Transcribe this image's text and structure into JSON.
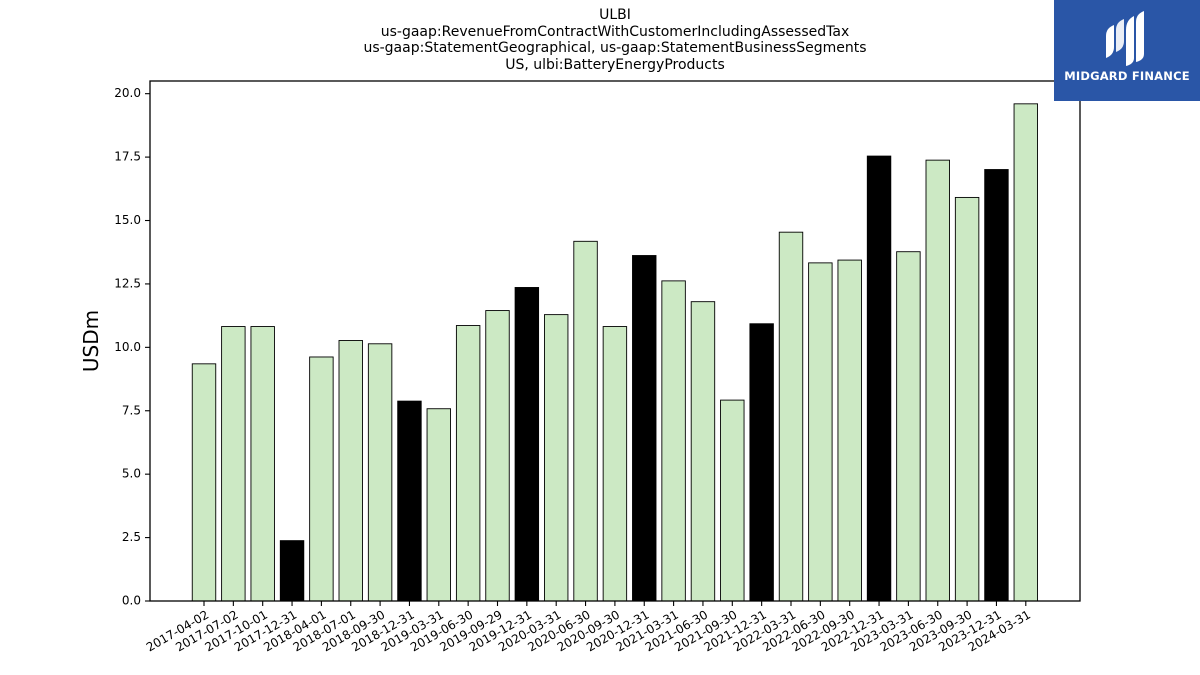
{
  "chart_data": {
    "type": "bar",
    "title_lines": [
      "ULBI",
      "us-gaap:RevenueFromContractWithCustomerIncludingAssessedTax",
      "us-gaap:StatementGeographical, us-gaap:StatementBusinessSegments",
      "US, ulbi:BatteryEnergyProducts"
    ],
    "ylabel": "USDm",
    "xlabel": "",
    "ylim": [
      0,
      20.5
    ],
    "yticks": [
      0.0,
      2.5,
      5.0,
      7.5,
      10.0,
      12.5,
      15.0,
      17.5,
      20.0
    ],
    "grid": false,
    "categories": [
      "2017-04-02",
      "2017-07-02",
      "2017-10-01",
      "2017-12-31",
      "2018-04-01",
      "2018-07-01",
      "2018-09-30",
      "2018-12-31",
      "2019-03-31",
      "2019-06-30",
      "2019-09-29",
      "2019-12-31",
      "2020-03-31",
      "2020-06-30",
      "2020-09-30",
      "2020-12-31",
      "2021-03-31",
      "2021-06-30",
      "2021-09-30",
      "2021-12-31",
      "2022-03-31",
      "2022-06-30",
      "2022-09-30",
      "2022-12-31",
      "2023-03-31",
      "2023-06-30",
      "2023-09-30",
      "2023-12-31",
      "2024-03-31"
    ],
    "values": [
      9.35,
      10.82,
      10.82,
      2.38,
      9.62,
      10.27,
      10.14,
      7.88,
      7.58,
      10.86,
      11.45,
      12.36,
      11.29,
      14.18,
      10.82,
      13.62,
      12.62,
      11.8,
      7.92,
      10.93,
      14.54,
      13.33,
      13.44,
      17.54,
      13.77,
      17.38,
      15.91,
      17.01,
      19.6
    ],
    "highlighted": [
      false,
      false,
      false,
      true,
      false,
      false,
      false,
      true,
      false,
      false,
      false,
      true,
      false,
      false,
      false,
      true,
      false,
      false,
      false,
      true,
      false,
      false,
      false,
      true,
      false,
      false,
      false,
      true,
      false
    ],
    "colors": {
      "bar": "#cce9c4",
      "bar_highlight": "#000000",
      "bar_edge": "#000000"
    }
  },
  "logo": {
    "text": "MIDGARD FINANCE",
    "background": "#2a56a7"
  }
}
